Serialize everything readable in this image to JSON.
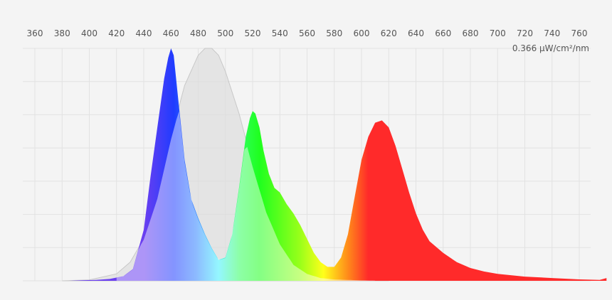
{
  "chart_data": {
    "type": "area",
    "unit_label": "0.366 µW/cm²/nm",
    "x_tick_labels": [
      "360",
      "380",
      "400",
      "420",
      "440",
      "460",
      "480",
      "500",
      "520",
      "540",
      "560",
      "580",
      "600",
      "620",
      "640",
      "660",
      "680",
      "700",
      "720",
      "740",
      "760"
    ],
    "xlim": [
      352,
      780
    ],
    "ylim": [
      0,
      1
    ],
    "grid": true,
    "spectral_colors": {
      "violet": "#6b3ff0",
      "blue": "#1f3cff",
      "cyan": "#3df0ff",
      "green": "#1fff1f",
      "yellow": "#ffff1a",
      "orange": "#ff8a1a",
      "red": "#ff2a2a",
      "sensitivity_fill": "#dcdcdc"
    },
    "series": [
      {
        "name": "",
        "x": [
          375,
          385,
          395,
          405,
          415,
          425,
          432,
          440,
          445,
          450,
          455,
          458,
          460,
          462,
          465,
          470,
          475,
          480,
          485,
          490,
          495,
          500,
          505,
          510,
          515,
          518,
          520,
          522,
          525,
          528,
          532,
          536,
          540,
          545,
          550,
          555,
          560,
          565,
          570,
          575,
          580,
          585,
          590,
          595,
          600,
          605,
          610,
          615,
          620,
          625,
          630,
          635,
          640,
          645,
          650,
          660,
          670,
          680,
          690,
          700,
          720,
          740,
          760,
          775,
          780
        ],
        "values": [
          0,
          0,
          0.002,
          0.004,
          0.008,
          0.02,
          0.05,
          0.22,
          0.45,
          0.66,
          0.87,
          0.96,
          1.0,
          0.97,
          0.8,
          0.52,
          0.35,
          0.27,
          0.2,
          0.14,
          0.09,
          0.1,
          0.2,
          0.4,
          0.62,
          0.7,
          0.73,
          0.72,
          0.66,
          0.56,
          0.46,
          0.4,
          0.38,
          0.33,
          0.29,
          0.24,
          0.18,
          0.12,
          0.08,
          0.06,
          0.06,
          0.1,
          0.2,
          0.36,
          0.52,
          0.62,
          0.68,
          0.69,
          0.66,
          0.58,
          0.48,
          0.38,
          0.29,
          0.22,
          0.17,
          0.12,
          0.08,
          0.055,
          0.04,
          0.03,
          0.018,
          0.012,
          0.006,
          0.004,
          0.012
        ]
      },
      {
        "name": "",
        "x": [
          380,
          400,
          420,
          430,
          440,
          450,
          460,
          470,
          480,
          485,
          490,
          495,
          500,
          510,
          520,
          530,
          540,
          550,
          560,
          570,
          580,
          590,
          600,
          610,
          620
        ],
        "values": [
          0,
          0.004,
          0.03,
          0.08,
          0.18,
          0.36,
          0.62,
          0.84,
          0.97,
          1.0,
          1.0,
          0.97,
          0.9,
          0.72,
          0.5,
          0.3,
          0.16,
          0.07,
          0.03,
          0.012,
          0.006,
          0.004,
          0.002,
          0.001,
          0
        ]
      }
    ]
  }
}
